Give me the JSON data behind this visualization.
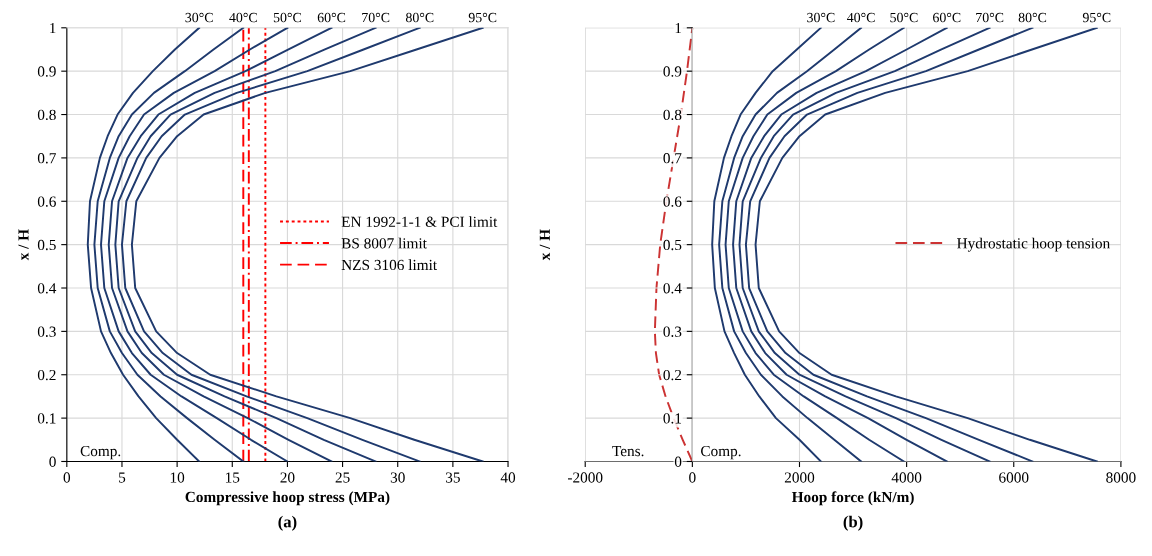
{
  "chart_data": [
    {
      "type": "line",
      "xlabel": "Compressive hoop stress (MPa)",
      "ylabel": "x / H",
      "xlim": [
        0,
        40
      ],
      "xticks": [
        0,
        5,
        10,
        15,
        20,
        25,
        30,
        35,
        40
      ],
      "ylim": [
        0,
        1
      ],
      "yticks": [
        0,
        0.1,
        0.2,
        0.3,
        0.4,
        0.5,
        0.6,
        0.7,
        0.8,
        0.9,
        1
      ],
      "grid": true,
      "legend": "right",
      "marker": "none",
      "line_style": "solid",
      "annotations": [
        "Comp.",
        "(a)"
      ],
      "series": [
        {
          "name": "30°C",
          "color": "#1f3a6e",
          "x": [
            12,
            10.0,
            8.1,
            6.5,
            5.1,
            4.0,
            3.1,
            2.2,
            1.9,
            2.1,
            3.0,
            3.7,
            4.6,
            6.0,
            7.8,
            9.8,
            12
          ],
          "values": [
            0,
            0.05,
            0.1,
            0.15,
            0.2,
            0.25,
            0.3,
            0.4,
            0.5,
            0.6,
            0.7,
            0.75,
            0.8,
            0.85,
            0.9,
            0.95,
            1
          ]
        },
        {
          "name": "40°C",
          "color": "#1f3a6e",
          "x": [
            16.0,
            13.4,
            10.9,
            8.5,
            6.4,
            5.0,
            3.9,
            2.8,
            2.5,
            2.8,
            3.9,
            4.7,
            5.9,
            7.9,
            10.7,
            13.3,
            16.0
          ],
          "values": [
            0,
            0.05,
            0.1,
            0.15,
            0.2,
            0.25,
            0.3,
            0.4,
            0.5,
            0.6,
            0.7,
            0.75,
            0.8,
            0.85,
            0.9,
            0.95,
            1
          ]
        },
        {
          "name": "50°C",
          "color": "#1f3a6e",
          "x": [
            20.0,
            16.7,
            13.6,
            10.4,
            7.6,
            5.9,
            4.7,
            3.4,
            3.1,
            3.4,
            4.7,
            5.7,
            7.0,
            9.7,
            13.4,
            16.6,
            20.0
          ],
          "values": [
            0,
            0.05,
            0.1,
            0.15,
            0.2,
            0.25,
            0.3,
            0.4,
            0.5,
            0.6,
            0.7,
            0.75,
            0.8,
            0.85,
            0.9,
            0.95,
            1
          ]
        },
        {
          "name": "60°C",
          "color": "#1f3a6e",
          "x": [
            24.0,
            20.1,
            16.4,
            12.4,
            8.8,
            6.8,
            5.5,
            4.1,
            3.8,
            4.1,
            5.5,
            6.7,
            8.3,
            11.6,
            16.2,
            20.1,
            24.0
          ],
          "values": [
            0,
            0.05,
            0.1,
            0.15,
            0.2,
            0.25,
            0.3,
            0.4,
            0.5,
            0.6,
            0.7,
            0.75,
            0.8,
            0.85,
            0.9,
            0.95,
            1
          ]
        },
        {
          "name": "70°C",
          "color": "#1f3a6e",
          "x": [
            28.0,
            23.3,
            19.0,
            14.3,
            10.0,
            7.7,
            6.2,
            4.7,
            4.4,
            4.7,
            6.4,
            7.6,
            9.4,
            13.4,
            18.9,
            23.4,
            28.0
          ],
          "values": [
            0,
            0.05,
            0.1,
            0.15,
            0.2,
            0.25,
            0.3,
            0.4,
            0.5,
            0.6,
            0.7,
            0.75,
            0.8,
            0.85,
            0.9,
            0.95,
            1
          ]
        },
        {
          "name": "80°C",
          "color": "#1f3a6e",
          "x": [
            32.0,
            26.8,
            21.8,
            16.3,
            11.3,
            8.7,
            7.0,
            5.3,
            5.0,
            5.4,
            7.2,
            8.6,
            10.7,
            15.4,
            21.8,
            26.9,
            32.0
          ],
          "values": [
            0,
            0.05,
            0.1,
            0.15,
            0.2,
            0.25,
            0.3,
            0.4,
            0.5,
            0.6,
            0.7,
            0.75,
            0.8,
            0.85,
            0.9,
            0.95,
            1
          ]
        },
        {
          "name": "95°C",
          "color": "#1f3a6e",
          "x": [
            37.7,
            31.5,
            25.7,
            19.0,
            13.0,
            10.0,
            8.1,
            6.2,
            5.9,
            6.3,
            8.4,
            10.0,
            12.4,
            18.0,
            25.7,
            31.7,
            37.7
          ],
          "values": [
            0,
            0.05,
            0.1,
            0.15,
            0.2,
            0.25,
            0.3,
            0.4,
            0.5,
            0.6,
            0.7,
            0.75,
            0.8,
            0.85,
            0.9,
            0.95,
            1
          ]
        },
        {
          "name": "EN 1992-1-1 & PCI limit",
          "color": "#ff0000",
          "line_style": "dotted",
          "x": [
            18,
            18
          ],
          "values": [
            0,
            1
          ]
        },
        {
          "name": "BS 8007 limit",
          "color": "#ff0000",
          "line_style": "dashdot",
          "x": [
            16.5,
            16.5
          ],
          "values": [
            0,
            1
          ]
        },
        {
          "name": "NZS 3106 limit",
          "color": "#ff0000",
          "line_style": "dashed",
          "x": [
            16,
            16
          ],
          "values": [
            0,
            1
          ]
        }
      ]
    },
    {
      "type": "line",
      "xlabel": "Hoop force (kN/m)",
      "ylabel": "x / H",
      "xlim": [
        -2000,
        8000
      ],
      "xticks": [
        -2000,
        0,
        2000,
        4000,
        6000,
        8000
      ],
      "ylim": [
        0,
        1
      ],
      "yticks": [
        0,
        0.1,
        0.2,
        0.3,
        0.4,
        0.5,
        0.6,
        0.7,
        0.8,
        0.9,
        1
      ],
      "grid": true,
      "legend": "right",
      "marker": "none",
      "line_style": "solid",
      "annotations": [
        "Tens.",
        "Comp.",
        "(b)"
      ],
      "series": [
        {
          "name": "Hydrostatic hoop tension",
          "color": "#cc3333",
          "line_style": "dashed",
          "x": [
            0,
            -180,
            -350,
            -500,
            -620,
            -680,
            -700,
            -670,
            -600,
            -485,
            -350,
            -215,
            -100,
            0
          ],
          "values": [
            0,
            0.05,
            0.1,
            0.15,
            0.2,
            0.25,
            0.3,
            0.4,
            0.5,
            0.6,
            0.7,
            0.8,
            0.9,
            1
          ]
        },
        {
          "name": "30°C",
          "color": "#1f3a6e",
          "x": [
            2400,
            2000,
            1560,
            1250,
            980,
            780,
            600,
            420,
            370,
            410,
            590,
            730,
            900,
            1180,
            1500,
            1950,
            2400
          ],
          "values": [
            0,
            0.05,
            0.1,
            0.15,
            0.2,
            0.25,
            0.3,
            0.4,
            0.5,
            0.6,
            0.7,
            0.75,
            0.8,
            0.85,
            0.9,
            0.95,
            1
          ]
        },
        {
          "name": "40°C",
          "color": "#1f3a6e",
          "x": [
            3150,
            2650,
            2150,
            1680,
            1280,
            1000,
            780,
            560,
            500,
            560,
            780,
            940,
            1180,
            1580,
            2140,
            2650,
            3150
          ],
          "values": [
            0,
            0.05,
            0.1,
            0.15,
            0.2,
            0.25,
            0.3,
            0.4,
            0.5,
            0.6,
            0.7,
            0.75,
            0.8,
            0.85,
            0.9,
            0.95,
            1
          ]
        },
        {
          "name": "50°C",
          "color": "#1f3a6e",
          "x": [
            3950,
            3300,
            2700,
            2080,
            1520,
            1180,
            940,
            680,
            620,
            680,
            940,
            1140,
            1400,
            1940,
            2680,
            3300,
            3950
          ],
          "values": [
            0,
            0.05,
            0.1,
            0.15,
            0.2,
            0.25,
            0.3,
            0.4,
            0.5,
            0.6,
            0.7,
            0.75,
            0.8,
            0.85,
            0.9,
            0.95,
            1
          ]
        },
        {
          "name": "60°C",
          "color": "#1f3a6e",
          "x": [
            4750,
            4000,
            3280,
            2480,
            1760,
            1360,
            1100,
            820,
            760,
            820,
            1100,
            1340,
            1660,
            2320,
            3240,
            4000,
            4750
          ],
          "values": [
            0,
            0.05,
            0.1,
            0.15,
            0.2,
            0.25,
            0.3,
            0.4,
            0.5,
            0.6,
            0.7,
            0.75,
            0.8,
            0.85,
            0.9,
            0.95,
            1
          ]
        },
        {
          "name": "70°C",
          "color": "#1f3a6e",
          "x": [
            5550,
            4650,
            3800,
            2860,
            2000,
            1540,
            1240,
            940,
            880,
            940,
            1280,
            1520,
            1880,
            2680,
            3780,
            4650,
            5550
          ],
          "values": [
            0,
            0.05,
            0.1,
            0.15,
            0.2,
            0.25,
            0.3,
            0.4,
            0.5,
            0.6,
            0.7,
            0.75,
            0.8,
            0.85,
            0.9,
            0.95,
            1
          ]
        },
        {
          "name": "80°C",
          "color": "#1f3a6e",
          "x": [
            6350,
            5350,
            4360,
            3260,
            2260,
            1740,
            1400,
            1060,
            1000,
            1080,
            1440,
            1720,
            2140,
            3080,
            4360,
            5350,
            6350
          ],
          "values": [
            0,
            0.05,
            0.1,
            0.15,
            0.2,
            0.25,
            0.3,
            0.4,
            0.5,
            0.6,
            0.7,
            0.75,
            0.8,
            0.85,
            0.9,
            0.95,
            1
          ]
        },
        {
          "name": "95°C",
          "color": "#1f3a6e",
          "x": [
            7550,
            6300,
            5140,
            3800,
            2600,
            2000,
            1620,
            1240,
            1180,
            1260,
            1680,
            2000,
            2480,
            3600,
            5140,
            6340,
            7550
          ],
          "values": [
            0,
            0.05,
            0.1,
            0.15,
            0.2,
            0.25,
            0.3,
            0.4,
            0.5,
            0.6,
            0.7,
            0.75,
            0.8,
            0.85,
            0.9,
            0.95,
            1
          ]
        }
      ]
    }
  ]
}
